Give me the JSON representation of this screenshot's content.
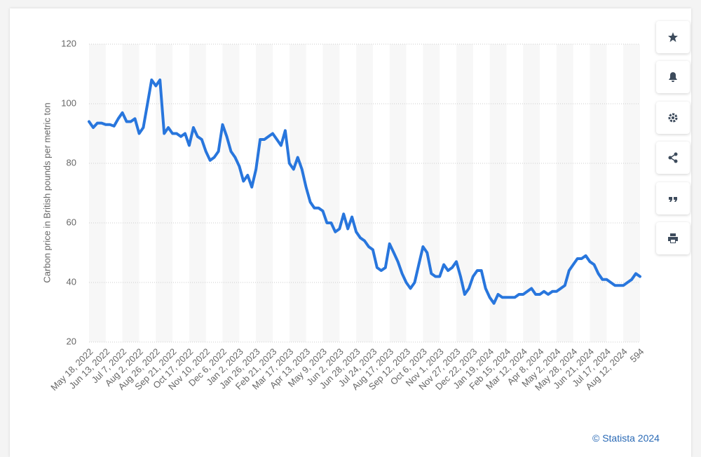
{
  "source": "© Statista 2024",
  "chart_data": {
    "type": "line",
    "y_label": "Carbon price in British pounds per metric ton",
    "categories": [
      "May 18, 2022",
      null,
      null,
      null,
      "Jun 13, 2022",
      null,
      null,
      null,
      "Jul 7, 2022",
      null,
      null,
      null,
      "Aug 2, 2022",
      null,
      null,
      null,
      "Aug 26, 2022",
      null,
      null,
      null,
      "Sep 21, 2022",
      null,
      null,
      null,
      "Oct 17, 2022",
      null,
      null,
      null,
      "Nov 10, 2022",
      null,
      null,
      null,
      "Dec 6, 2022",
      null,
      null,
      null,
      "Jan 2, 2023",
      null,
      null,
      null,
      "Jan 26, 2023",
      null,
      null,
      null,
      "Feb 21, 2023",
      null,
      null,
      null,
      "Mar 17, 2023",
      null,
      null,
      null,
      "Apr 13, 2023",
      null,
      null,
      null,
      "May 9, 2023",
      null,
      null,
      null,
      "Jun 2, 2023",
      null,
      null,
      null,
      "Jun 28, 2023",
      null,
      null,
      null,
      "Jul 24, 2023",
      null,
      null,
      null,
      "Aug 17, 2023",
      null,
      null,
      null,
      "Sep 12, 2023",
      null,
      null,
      null,
      "Oct 6, 2023",
      null,
      null,
      null,
      "Nov 1, 2023",
      null,
      null,
      null,
      "Nov 27, 2023",
      null,
      null,
      null,
      "Dec 22, 2023",
      null,
      null,
      null,
      "Jan 19, 2024",
      null,
      null,
      null,
      "Feb 15, 2024",
      null,
      null,
      null,
      "Mar 12, 2024",
      null,
      null,
      null,
      "Apr 8, 2024",
      null,
      null,
      null,
      "May 2, 2024",
      null,
      null,
      null,
      "May 28, 2024",
      null,
      null,
      null,
      "Jun 21, 2024",
      null,
      null,
      null,
      "Jul 17, 2024",
      null,
      null,
      null,
      "Aug 12, 2024",
      null,
      null,
      null,
      "594"
    ],
    "series": [
      {
        "name": "Carbon price",
        "color": "#2876dd",
        "values": [
          94,
          92,
          93.5,
          93.5,
          93,
          93,
          92.5,
          95,
          97,
          94,
          94,
          95,
          90,
          92,
          100,
          108,
          106,
          108,
          90,
          92,
          90,
          90,
          89,
          90,
          86,
          92,
          89,
          88,
          84,
          81,
          82,
          84,
          93,
          89,
          84,
          82,
          79,
          74,
          76,
          72,
          78,
          88,
          88,
          89,
          90,
          88,
          86,
          91,
          80,
          78,
          82,
          78,
          72,
          67,
          65,
          65,
          64,
          60,
          60,
          57,
          58,
          63,
          58,
          62,
          57,
          55,
          54,
          52,
          51,
          45,
          44,
          45,
          53,
          50,
          47,
          43,
          40,
          38,
          40,
          46,
          52,
          50,
          43,
          42,
          42,
          46,
          44,
          45,
          47,
          42,
          36,
          38,
          42,
          44,
          44,
          38,
          35,
          33,
          36,
          35,
          35,
          35,
          35,
          36,
          36,
          37,
          38,
          36,
          36,
          37,
          36,
          37,
          37,
          38,
          39,
          44,
          46,
          48,
          48,
          49,
          47,
          46,
          43,
          41,
          41,
          40,
          39,
          39,
          39,
          40,
          41,
          43,
          42
        ]
      }
    ],
    "ylim": [
      20,
      120
    ],
    "yticks": [
      20,
      40,
      60,
      80,
      100,
      120
    ],
    "grid": true,
    "stripes": true
  }
}
